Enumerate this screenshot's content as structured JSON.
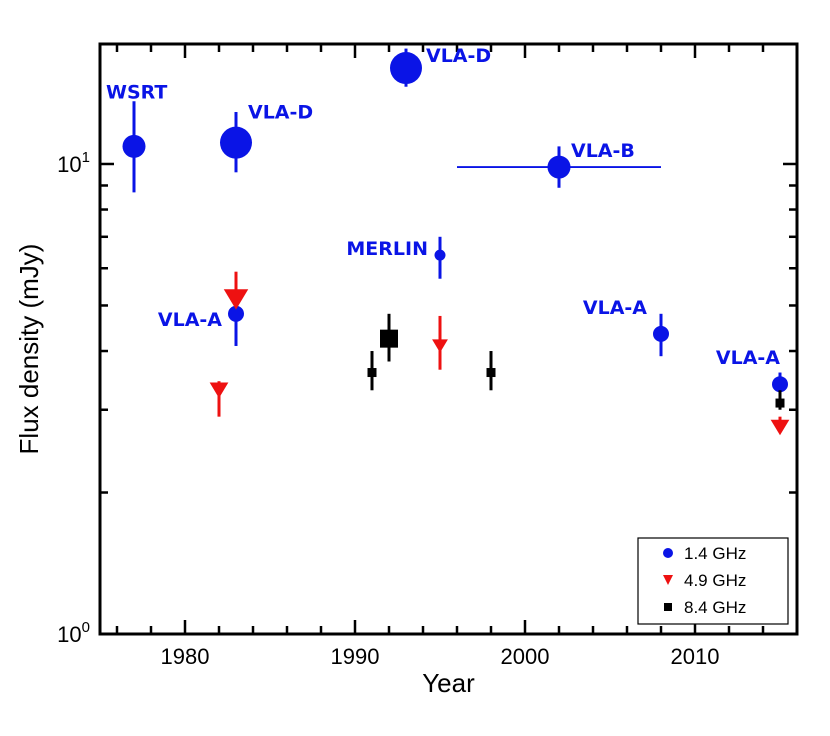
{
  "chart_data": {
    "type": "scatter",
    "title": "",
    "xlabel": "Year",
    "ylabel": "Flux density (mJy)",
    "xscale": "linear",
    "yscale": "log",
    "xlim": [
      1975,
      2016
    ],
    "ylim": [
      1,
      18
    ],
    "xticks": [
      1980,
      1990,
      2000,
      2010
    ],
    "xtick_labels": [
      "1980",
      "1990",
      "2000",
      "2010"
    ],
    "ytick_labels": [
      {
        "value": 1,
        "base": "10",
        "exp": "0"
      },
      {
        "value": 10,
        "base": "10",
        "exp": "1"
      }
    ],
    "colors": {
      "s14": "#0a14e6",
      "s49": "#ee1111",
      "s84": "#000000"
    },
    "legend": {
      "position": "bottom-right",
      "entries": [
        {
          "label": "1.4 GHz",
          "marker": "circle",
          "color": "#0a14e6"
        },
        {
          "label": "4.9 GHz",
          "marker": "triangle-down",
          "color": "#ee1111"
        },
        {
          "label": "8.4 GHz",
          "marker": "square",
          "color": "#000000"
        }
      ]
    },
    "series": [
      {
        "name": "1.4 GHz",
        "marker": "circle",
        "color": "#0a14e6",
        "points": [
          {
            "x": 1977,
            "y": 10.9,
            "ylo": 8.7,
            "yhi": 13.6,
            "size": "medium",
            "label": "WSRT"
          },
          {
            "x": 1983,
            "y": 11.1,
            "ylo": 9.6,
            "yhi": 12.9,
            "size": "large",
            "label": "VLA-D"
          },
          {
            "x": 1983,
            "y": 4.8,
            "ylo": 4.1,
            "yhi": 5.6,
            "size": "small",
            "label": "VLA-A"
          },
          {
            "x": 1993,
            "y": 16.0,
            "ylo": 14.6,
            "yhi": 17.6,
            "size": "large",
            "label": "VLA-D"
          },
          {
            "x": 1995,
            "y": 6.4,
            "ylo": 5.7,
            "yhi": 7.0,
            "size": "tiny",
            "label": "MERLIN"
          },
          {
            "x": 2002,
            "y": 9.85,
            "xlo": 1996,
            "xhi": 2008,
            "ylo": 8.9,
            "yhi": 10.9,
            "size": "medium",
            "label": "VLA-B"
          },
          {
            "x": 2008,
            "y": 4.35,
            "ylo": 3.9,
            "yhi": 4.8,
            "size": "small",
            "label": "VLA-A"
          },
          {
            "x": 2015,
            "y": 3.4,
            "ylo": 3.2,
            "yhi": 3.6,
            "size": "small",
            "label": "VLA-A"
          }
        ]
      },
      {
        "name": "4.9 GHz",
        "marker": "triangle-down",
        "color": "#ee1111",
        "points": [
          {
            "x": 1982,
            "y": 3.3,
            "ylo": 2.9,
            "yhi": 3.45,
            "size": "medium"
          },
          {
            "x": 1983,
            "y": 5.15,
            "ylo": 5.0,
            "yhi": 5.9,
            "size": "large"
          },
          {
            "x": 1995,
            "y": 4.1,
            "ylo": 3.65,
            "yhi": 4.75,
            "size": "small"
          },
          {
            "x": 2015,
            "y": 2.75,
            "ylo": 2.7,
            "yhi": 2.9,
            "size": "medium"
          }
        ]
      },
      {
        "name": "8.4 GHz",
        "marker": "square",
        "color": "#000000",
        "points": [
          {
            "x": 1991,
            "y": 3.6,
            "ylo": 3.3,
            "yhi": 4.0,
            "size": "small"
          },
          {
            "x": 1992,
            "y": 4.25,
            "ylo": 3.8,
            "yhi": 4.8,
            "size": "large"
          },
          {
            "x": 1998,
            "y": 3.6,
            "ylo": 3.3,
            "yhi": 4.0,
            "size": "small"
          },
          {
            "x": 2015,
            "y": 3.1,
            "ylo": 3.0,
            "yhi": 3.3,
            "size": "small"
          }
        ]
      }
    ]
  }
}
